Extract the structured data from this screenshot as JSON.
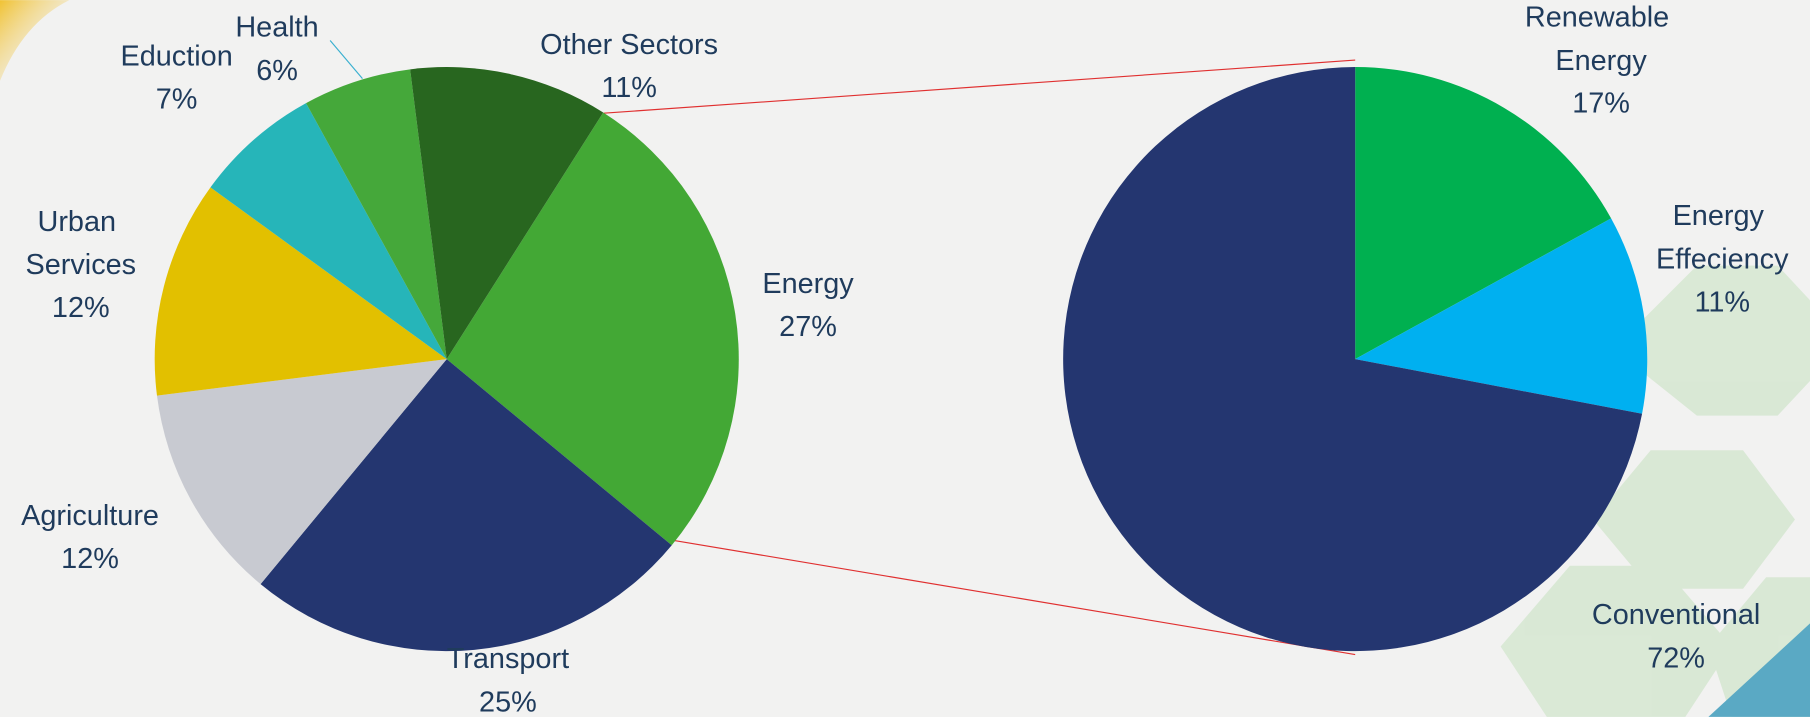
{
  "chart_data": [
    {
      "type": "pie",
      "categories": [
        "Energy",
        "Transport",
        "Agriculture",
        "Urban Services",
        "Eduction",
        "Health",
        "Other Sectors"
      ],
      "values": [
        27,
        25,
        12,
        12,
        7,
        6,
        11
      ],
      "value_labels": [
        "27%",
        "25%",
        "12%",
        "12%",
        "7%",
        "6%",
        "11%"
      ],
      "colors": [
        "#43a835",
        "#243670",
        "#c8cad1",
        "#e2c000",
        "#26b5b9",
        "#45a83a",
        "#28661f"
      ]
    },
    {
      "type": "pie",
      "categories": [
        "Renewable Energy",
        "Energy Effeciency",
        "Conventional"
      ],
      "values": [
        17,
        11,
        72
      ],
      "value_labels": [
        "17%",
        "11%",
        "72%"
      ],
      "colors": [
        "#00b050",
        "#00b0f0",
        "#243670"
      ]
    }
  ]
}
